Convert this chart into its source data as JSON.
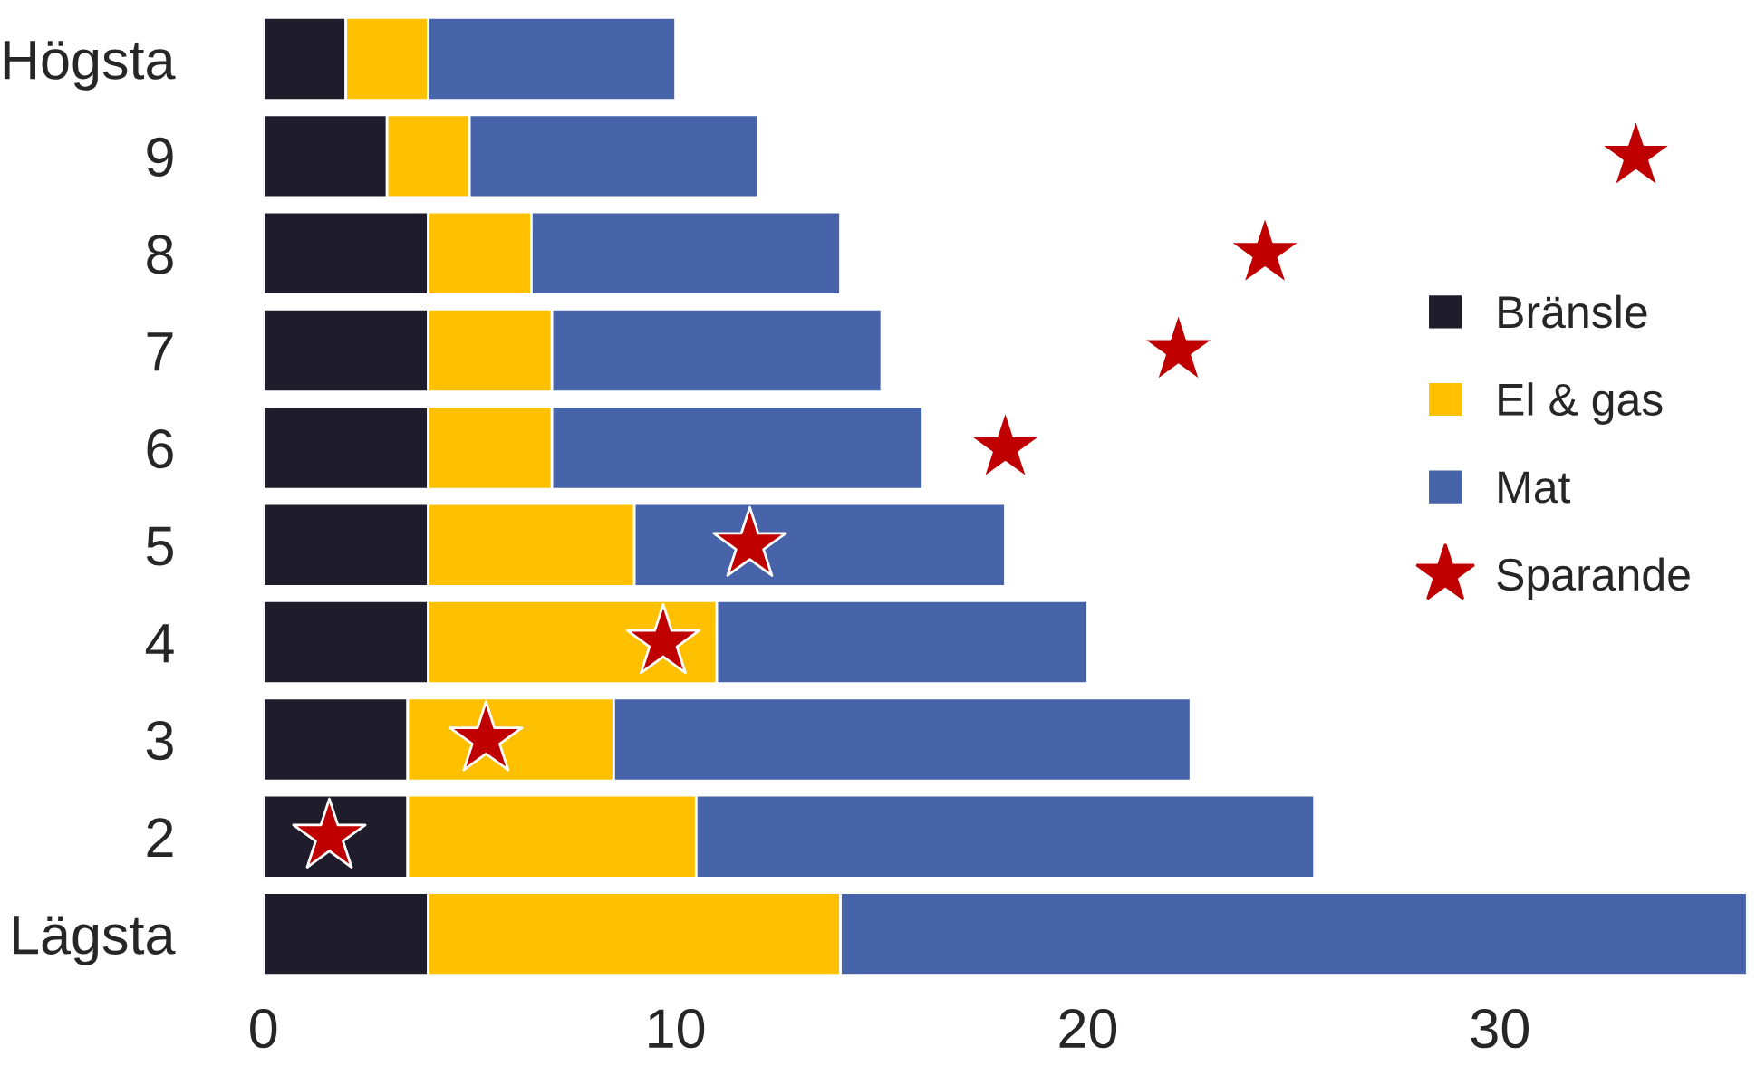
{
  "chart_data": {
    "type": "bar",
    "orientation": "horizontal",
    "stacked": true,
    "categories": [
      "Högsta",
      "9",
      "8",
      "7",
      "6",
      "5",
      "4",
      "3",
      "2",
      "Lägsta"
    ],
    "series": [
      {
        "name": "Bränsle",
        "color": "#1f1d2b",
        "values": [
          2,
          3,
          4,
          4,
          4,
          4,
          4,
          3.5,
          3.5,
          4
        ]
      },
      {
        "name": "El & gas",
        "color": "#ffc000",
        "values": [
          2,
          2,
          2.5,
          3,
          3,
          5,
          7,
          5,
          7,
          10
        ]
      },
      {
        "name": "Mat",
        "color": "#4763aa",
        "values": [
          6,
          7,
          7.5,
          8,
          9,
          9,
          9,
          14,
          15,
          22
        ]
      },
      {
        "name": "Sparande",
        "type": "scatter",
        "marker": "star",
        "color": "#c00000",
        "values": [
          null,
          33.3,
          24.3,
          22.2,
          18,
          11.8,
          9.7,
          5.4,
          1.6,
          null
        ]
      }
    ],
    "xlim": [
      0,
      36
    ],
    "xticks": [
      0,
      10,
      20,
      30
    ],
    "grid": false,
    "legend": "right"
  }
}
